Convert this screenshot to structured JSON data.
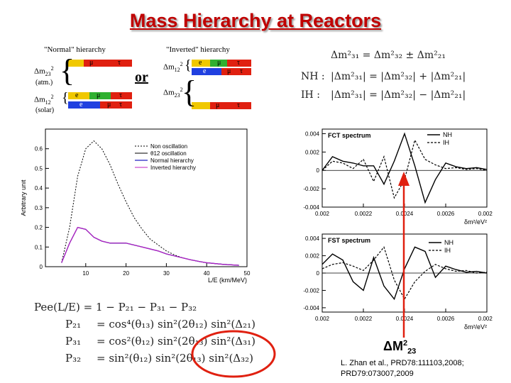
{
  "title": "Mass Hierarchy at Reactors",
  "hierarchy_diagram": {
    "normal_title": "\"Normal\" hierarchy",
    "inverted_title": "\"Inverted\" hierarchy",
    "or_label": "or",
    "normal_dm23": "Δm",
    "normal_dm23_sub": "23",
    "normal_dm23_sup": "2",
    "normal_atm": "(atm.)",
    "normal_dm12": "Δm",
    "normal_dm12_sub": "12",
    "normal_dm12_sup": "2",
    "normal_solar": "(solar)",
    "inverted_dm12": "Δm",
    "inverted_dm12_sub": "12",
    "inverted_dm12_sup": "2",
    "inverted_dm23": "Δm",
    "inverted_dm23_sub": "23",
    "inverted_dm23_sup": "2",
    "flavor_e": "e",
    "flavor_mu": "μ",
    "flavor_tau": "τ"
  },
  "relations": {
    "line1": "Δm²₃₁  =  Δm²₃₂ ± Δm²₂₁",
    "nh_label": "NH :",
    "nh_eq": "|Δm²₃₁|  =  |Δm²₃₂| + |Δm²₂₁|",
    "ih_label": "IH :",
    "ih_eq": "|Δm²₃₁|  =  |Δm²₃₂| − |Δm²₂₁|"
  },
  "probabilities": {
    "p1": "Pee(L/E)  =  1 − P₂₁ − P₃₁ − P₃₂",
    "p2_lhs": "P₂₁",
    "p2_rhs": "=  cos⁴(θ₁₃) sin²(2θ₁₂) sin²(Δ₂₁)",
    "p3_lhs": "P₃₁",
    "p3_rhs": "=  cos²(θ₁₂) sin²(2θ₁₃) sin²(Δ₃₁)",
    "p4_lhs": "P₃₂",
    "p4_rhs": "=  sin²(θ₁₂) sin²(2θ₁₃) sin²(Δ₃₂)"
  },
  "delta_label": "ΔM",
  "delta_sup": "2",
  "delta_sub": "23",
  "reference": {
    "line1": "L. Zhan et al.,  PRD78:111103,2008;",
    "line2": "PRD79:073007,2009"
  },
  "colors": {
    "title": "#c00000",
    "red": "#e02010",
    "yellow": "#f0c800",
    "blue": "#2040e0",
    "green": "#30b030",
    "non_osc": "#000000",
    "theta12_osc": "#000000",
    "normal": "#2020c0",
    "inverted": "#c020c0"
  },
  "chart_data": [
    {
      "type": "line",
      "title": "",
      "xlabel": "L/E (km/MeV)",
      "ylabel": "Arbitrary unit",
      "xlim": [
        0,
        50
      ],
      "ylim": [
        0,
        0.7
      ],
      "xticks": [
        10,
        20,
        30,
        40,
        50
      ],
      "yticks": [
        0,
        0.1,
        0.2,
        0.3,
        0.4,
        0.5,
        0.6
      ],
      "legend_position": "top-right",
      "series": [
        {
          "name": "Non oscillation",
          "x": [
            4,
            6,
            8,
            10,
            12,
            14,
            16,
            18,
            20,
            22,
            24,
            26,
            28,
            30,
            32,
            34,
            36,
            38,
            40,
            44,
            48
          ],
          "values": [
            0.02,
            0.2,
            0.46,
            0.6,
            0.64,
            0.6,
            0.52,
            0.42,
            0.33,
            0.25,
            0.19,
            0.14,
            0.11,
            0.08,
            0.06,
            0.045,
            0.035,
            0.027,
            0.02,
            0.012,
            0.007
          ]
        },
        {
          "name": "θ12 oscillation",
          "x": [
            4,
            6,
            8,
            10,
            12,
            14,
            16,
            18,
            20,
            22,
            24,
            26,
            28,
            30,
            32,
            34,
            36,
            38,
            40,
            44,
            48
          ],
          "values": [
            0.02,
            0.12,
            0.2,
            0.19,
            0.15,
            0.13,
            0.12,
            0.12,
            0.12,
            0.11,
            0.1,
            0.09,
            0.08,
            0.065,
            0.055,
            0.045,
            0.035,
            0.027,
            0.02,
            0.012,
            0.007
          ]
        },
        {
          "name": "Normal hierarchy",
          "x": [
            4,
            6,
            8,
            10,
            12,
            14,
            16,
            18,
            20,
            22,
            24,
            26,
            28,
            30,
            32,
            34,
            36,
            38,
            40,
            44,
            48
          ],
          "values": [
            0.02,
            0.12,
            0.2,
            0.19,
            0.15,
            0.13,
            0.12,
            0.12,
            0.12,
            0.11,
            0.1,
            0.09,
            0.08,
            0.065,
            0.055,
            0.045,
            0.035,
            0.027,
            0.02,
            0.012,
            0.007
          ]
        },
        {
          "name": "Inverted hierarchy",
          "x": [
            4,
            6,
            8,
            10,
            12,
            14,
            16,
            18,
            20,
            22,
            24,
            26,
            28,
            30,
            32,
            34,
            36,
            38,
            40,
            44,
            48
          ],
          "values": [
            0.02,
            0.12,
            0.2,
            0.19,
            0.15,
            0.13,
            0.12,
            0.12,
            0.12,
            0.11,
            0.1,
            0.09,
            0.08,
            0.065,
            0.055,
            0.045,
            0.035,
            0.027,
            0.02,
            0.012,
            0.007
          ]
        }
      ]
    },
    {
      "type": "line",
      "title": "FCT spectrum",
      "xlabel": "δm²/eV²",
      "ylabel": "",
      "xlim": [
        0.002,
        0.0028
      ],
      "ylim": [
        -0.004,
        0.0045
      ],
      "xticks": [
        "0.002",
        "0.0022",
        "0.0024",
        "0.0026",
        "0.0028"
      ],
      "yticks": [
        "-0.004",
        "-0.002",
        "0",
        "0.002",
        "0.004"
      ],
      "legend_position": "top-right",
      "series": [
        {
          "name": "NH",
          "x": [
            0.002,
            0.00205,
            0.0021,
            0.00215,
            0.0022,
            0.00225,
            0.0023,
            0.00235,
            0.0024,
            0.00245,
            0.0025,
            0.00255,
            0.0026,
            0.00265,
            0.0027,
            0.00275,
            0.0028
          ],
          "values": [
            0,
            0.0015,
            0.001,
            0.0008,
            0.0005,
            0.0005,
            -0.0015,
            0.001,
            0.004,
            0.0005,
            -0.0035,
            -0.001,
            0.0008,
            0.0004,
            0.0002,
            0.0003,
            0.0001
          ]
        },
        {
          "name": "IH",
          "x": [
            0.002,
            0.00205,
            0.0021,
            0.00215,
            0.0022,
            0.00225,
            0.0023,
            0.00235,
            0.0024,
            0.00245,
            0.0025,
            0.00255,
            0.0026,
            0.00265,
            0.0027,
            0.00275,
            0.0028
          ],
          "values": [
            0,
            0.001,
            0.0008,
            0.0002,
            0.0012,
            -0.0012,
            0.0015,
            -0.003,
            -0.001,
            0.0033,
            0.0012,
            0.0006,
            0.0002,
            0.0003,
            0.0001,
            0.0002,
            0
          ]
        }
      ]
    },
    {
      "type": "line",
      "title": "FST spectrum",
      "xlabel": "δm²/eV²",
      "ylabel": "",
      "xlim": [
        0.002,
        0.0028
      ],
      "ylim": [
        -0.0045,
        0.0045
      ],
      "xticks": [
        "0.002",
        "0.0022",
        "0.0024",
        "0.0026",
        "0.0028"
      ],
      "yticks": [
        "-0.004",
        "-0.002",
        "0",
        "0.002",
        "0.004"
      ],
      "legend_position": "top-right",
      "series": [
        {
          "name": "NH",
          "x": [
            0.002,
            0.00205,
            0.0021,
            0.00215,
            0.0022,
            0.00225,
            0.0023,
            0.00235,
            0.0024,
            0.00245,
            0.0025,
            0.00255,
            0.0026,
            0.00265,
            0.0027,
            0.00275,
            0.0028
          ],
          "values": [
            0.001,
            0.0022,
            0.0015,
            -0.001,
            -0.002,
            0.0018,
            -0.0015,
            -0.003,
            0.0005,
            0.003,
            0.0025,
            -0.0005,
            0.0008,
            0.0004,
            0.0001,
            0.0002,
            0
          ]
        },
        {
          "name": "IH",
          "x": [
            0.002,
            0.00205,
            0.0021,
            0.00215,
            0.0022,
            0.00225,
            0.0023,
            0.00235,
            0.0024,
            0.00245,
            0.0025,
            0.00255,
            0.0026,
            0.00265,
            0.0027,
            0.00275,
            0.0028
          ],
          "values": [
            0.0005,
            0.001,
            0.0012,
            0.0008,
            0.0003,
            0.0015,
            0.003,
            -0.0008,
            -0.003,
            -0.001,
            0.0002,
            0.001,
            0.0005,
            0.0002,
            0.0003,
            0,
            0.0001
          ]
        }
      ]
    }
  ]
}
